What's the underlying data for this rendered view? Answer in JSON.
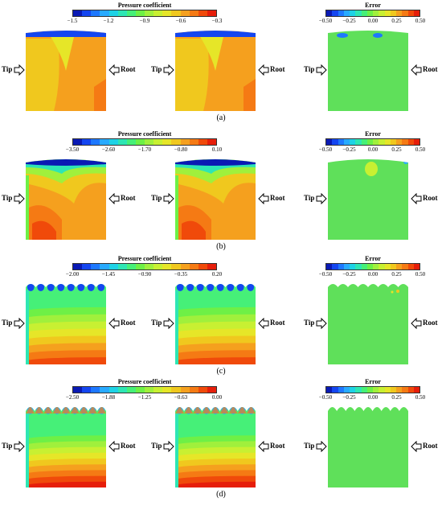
{
  "rows": [
    {
      "id": "a",
      "caption": "(a)",
      "pressure_colorbar": {
        "title": "Pressure coefficient",
        "ticks": [
          "−1.5",
          "−1.2",
          "−0.9",
          "−0.6",
          "−0.3"
        ]
      },
      "error_colorbar": {
        "title": "Error",
        "ticks": [
          "−0.50",
          "−0.25",
          "0.00",
          "0.25",
          "0.50"
        ]
      },
      "tip_label": "Tip",
      "root_label": "Root"
    },
    {
      "id": "b",
      "caption": "(b)",
      "pressure_colorbar": {
        "title": "Pressure coefficient",
        "ticks": [
          "−3.50",
          "−2.60",
          "−1.70",
          "−0.80",
          "0.10"
        ]
      },
      "error_colorbar": {
        "title": "Error",
        "ticks": [
          "−0.50",
          "−0.25",
          "0.00",
          "0.25",
          "0.50"
        ]
      },
      "tip_label": "Tip",
      "root_label": "Root"
    },
    {
      "id": "c",
      "caption": "(c)",
      "pressure_colorbar": {
        "title": "Pressure coefficient",
        "ticks": [
          "−2.00",
          "−1.45",
          "−0.90",
          "−0.35",
          "0.20"
        ]
      },
      "error_colorbar": {
        "title": "Error",
        "ticks": [
          "−0.50",
          "−0.25",
          "0.00",
          "0.25",
          "0.50"
        ]
      },
      "tip_label": "Tip",
      "root_label": "Root"
    },
    {
      "id": "d",
      "caption": "(d)",
      "pressure_colorbar": {
        "title": "Pressure coefficient",
        "ticks": [
          "−2.50",
          "−1.88",
          "−1.25",
          "−0.63",
          "0.00"
        ]
      },
      "error_colorbar": {
        "title": "Error",
        "ticks": [
          "−0.50",
          "−0.25",
          "0.00",
          "0.25",
          "0.50"
        ]
      },
      "tip_label": "Tip",
      "root_label": "Root"
    }
  ],
  "chart_data": [
    {
      "type": "heatmap",
      "panel": "a",
      "colorbar_title": "Pressure coefficient",
      "range": [
        -1.5,
        -0.3
      ],
      "ticks": [
        -1.5,
        -1.2,
        -0.9,
        -0.6,
        -0.3
      ],
      "error_range": [
        -0.5,
        0.5
      ],
      "error_ticks": [
        -0.5,
        -0.25,
        0.0,
        0.25,
        0.5
      ]
    },
    {
      "type": "heatmap",
      "panel": "b",
      "colorbar_title": "Pressure coefficient",
      "range": [
        -3.5,
        0.1
      ],
      "ticks": [
        -3.5,
        -2.6,
        -1.7,
        -0.8,
        0.1
      ],
      "error_range": [
        -0.5,
        0.5
      ],
      "error_ticks": [
        -0.5,
        -0.25,
        0.0,
        0.25,
        0.5
      ]
    },
    {
      "type": "heatmap",
      "panel": "c",
      "colorbar_title": "Pressure coefficient",
      "range": [
        -2.0,
        0.2
      ],
      "ticks": [
        -2.0,
        -1.45,
        -0.9,
        -0.35,
        0.2
      ],
      "error_range": [
        -0.5,
        0.5
      ],
      "error_ticks": [
        -0.5,
        -0.25,
        0.0,
        0.25,
        0.5
      ]
    },
    {
      "type": "heatmap",
      "panel": "d",
      "colorbar_title": "Pressure coefficient",
      "range": [
        -2.5,
        0.0
      ],
      "ticks": [
        -2.5,
        -1.88,
        -1.25,
        -0.63,
        0.0
      ],
      "error_range": [
        -0.5,
        0.5
      ],
      "error_ticks": [
        -0.5,
        -0.25,
        0.0,
        0.25,
        0.5
      ]
    }
  ],
  "colors": {
    "colormap": [
      "#0a1ab4",
      "#1446f0",
      "#1e78ff",
      "#28aaff",
      "#1ed2e6",
      "#2ee6b4",
      "#46f078",
      "#6ef046",
      "#a0f03c",
      "#c8f032",
      "#e6e628",
      "#f0c81e",
      "#f5a01e",
      "#f57a14",
      "#f04a0a",
      "#e61e0a"
    ],
    "error_green": "#5fe05a",
    "field_orange": "#f5961e"
  }
}
